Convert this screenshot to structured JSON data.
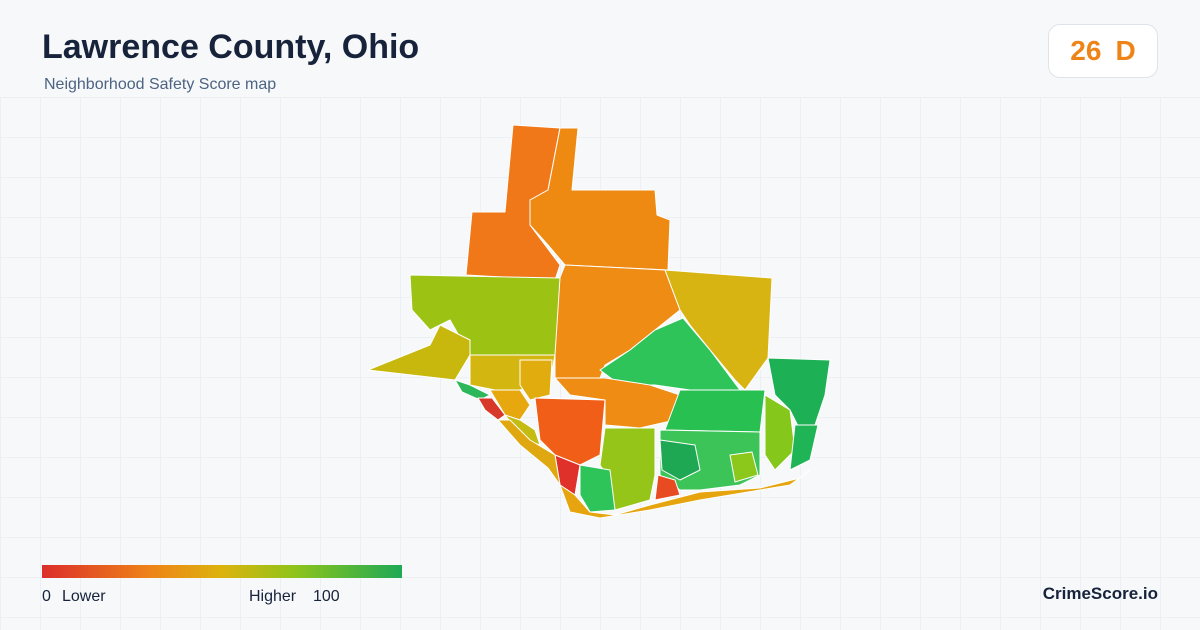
{
  "header": {
    "title": "Lawrence County, Ohio",
    "subtitle": "Neighborhood Safety Score map"
  },
  "score": {
    "value": 26,
    "grade": "D"
  },
  "legend": {
    "min": 0,
    "low_label": "Lower",
    "high_label": "Higher",
    "max": 100
  },
  "brand": "CrimeScore.io"
}
